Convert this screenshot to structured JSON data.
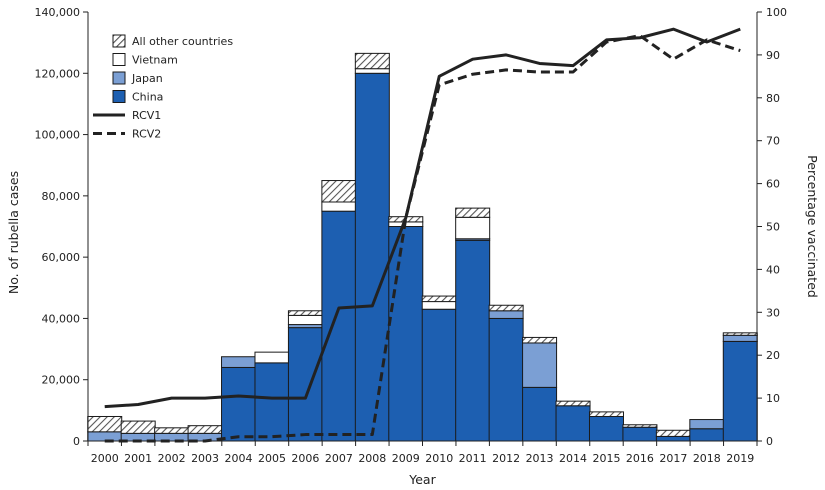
{
  "chart_data": {
    "type": "bar",
    "stacked": true,
    "categories": [
      "2000",
      "2001",
      "2002",
      "2003",
      "2004",
      "2005",
      "2006",
      "2007",
      "2008",
      "2009",
      "2010",
      "2011",
      "2012",
      "2013",
      "2014",
      "2015",
      "2016",
      "2017",
      "2018",
      "2019"
    ],
    "series": [
      {
        "name": "China",
        "color": "#1d5fb1",
        "values": [
          0,
          0,
          0,
          0,
          24000,
          25500,
          37000,
          75000,
          120000,
          70000,
          43000,
          65500,
          40000,
          17500,
          11500,
          8000,
          4500,
          1500,
          4000,
          32500
        ]
      },
      {
        "name": "Japan",
        "color": "#7b9fd4",
        "values": [
          3000,
          2500,
          2500,
          2500,
          3500,
          0,
          1000,
          0,
          0,
          0,
          0,
          500,
          2500,
          14500,
          0,
          0,
          0,
          0,
          3000,
          2000
        ]
      },
      {
        "name": "Vietnam",
        "color": "#ffffff",
        "values": [
          0,
          0,
          0,
          0,
          0,
          3500,
          3000,
          3000,
          1500,
          1500,
          2500,
          7000,
          0,
          0,
          0,
          0,
          0,
          0,
          0,
          0
        ]
      },
      {
        "name": "All other countries",
        "color": "#aaaaaa",
        "pattern": "hatch",
        "values": [
          5000,
          4000,
          1800,
          2500,
          0,
          0,
          1500,
          7000,
          5000,
          1700,
          1800,
          3000,
          1800,
          1800,
          1500,
          1500,
          800,
          2000,
          0,
          800
        ]
      }
    ],
    "lines": [
      {
        "name": "RCV1",
        "style": "solid",
        "axis": "right",
        "values": [
          8,
          8.5,
          10,
          10,
          10.5,
          10,
          10,
          31,
          31.5,
          52,
          85,
          89,
          90,
          88,
          87.5,
          93.5,
          94,
          96,
          93,
          96
        ]
      },
      {
        "name": "RCV2",
        "style": "dashed",
        "axis": "right",
        "values": [
          0,
          0,
          0,
          0,
          1,
          1,
          1.5,
          1.5,
          1.5,
          52,
          83,
          85.5,
          86.5,
          86,
          86,
          93,
          94.5,
          89,
          93.5,
          91
        ]
      }
    ],
    "xlabel": "Year",
    "ylabel": "No. of rubella cases",
    "ylabel_right": "Percentage vaccinated",
    "ylim": [
      0,
      140000
    ],
    "ylim_right": [
      0,
      100
    ],
    "yticks": [
      "0",
      "20,000",
      "40,000",
      "60,000",
      "80,000",
      "100,000",
      "120,000",
      "140,000"
    ],
    "yticks_right": [
      "0",
      "10",
      "20",
      "30",
      "40",
      "50",
      "60",
      "70",
      "80",
      "90",
      "100"
    ],
    "legend": {
      "placement": "top-left",
      "entries": [
        "All other countries",
        "Vietnam",
        "Japan",
        "China",
        "RCV1",
        "RCV2"
      ]
    }
  }
}
